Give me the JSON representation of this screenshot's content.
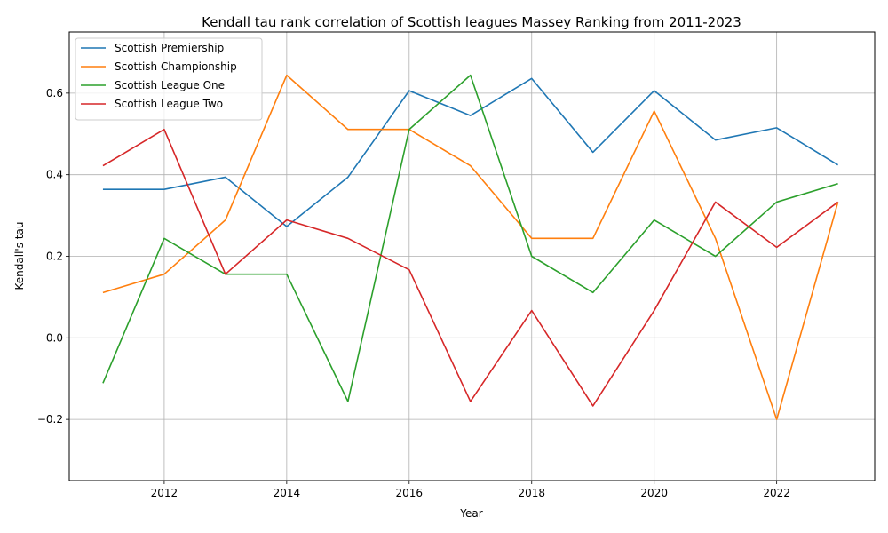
{
  "chart_data": {
    "type": "line",
    "title": "Kendall tau rank correlation of Scottish leagues Massey Ranking from 2011-2023",
    "xlabel": "Year",
    "ylabel": "Kendall's tau",
    "xlim": [
      2010.45,
      2023.6
    ],
    "ylim": [
      -0.35,
      0.75
    ],
    "xticks": [
      2012,
      2014,
      2016,
      2018,
      2020,
      2022
    ],
    "yticks": [
      -0.2,
      0.0,
      0.2,
      0.4,
      0.6
    ],
    "ytick_labels": [
      "−0.2",
      "0.0",
      "0.2",
      "0.4",
      "0.6"
    ],
    "grid": true,
    "legend_position": "top-left",
    "x": [
      2011,
      2012,
      2013,
      2014,
      2015,
      2016,
      2017,
      2018,
      2019,
      2020,
      2021,
      2022,
      2023
    ],
    "series": [
      {
        "name": "Scottish Premiership",
        "color": "#1f77b4",
        "values": [
          0.364,
          0.364,
          0.394,
          0.273,
          0.394,
          0.606,
          0.545,
          0.636,
          0.455,
          0.606,
          0.485,
          0.515,
          0.424
        ]
      },
      {
        "name": "Scottish Championship",
        "color": "#ff7f0e",
        "values": [
          0.111,
          0.156,
          0.289,
          0.644,
          0.511,
          0.511,
          0.422,
          0.244,
          0.244,
          0.556,
          0.244,
          -0.2,
          0.333
        ]
      },
      {
        "name": "Scottish League One",
        "color": "#2ca02c",
        "values": [
          -0.111,
          0.244,
          0.156,
          0.156,
          -0.156,
          0.511,
          0.644,
          0.2,
          0.111,
          0.289,
          0.2,
          0.333,
          0.378
        ]
      },
      {
        "name": "Scottish League Two",
        "color": "#d62728",
        "values": [
          0.422,
          0.511,
          0.156,
          0.289,
          0.244,
          0.167,
          -0.156,
          0.067,
          -0.167,
          0.067,
          0.333,
          0.222,
          0.333
        ]
      }
    ]
  }
}
